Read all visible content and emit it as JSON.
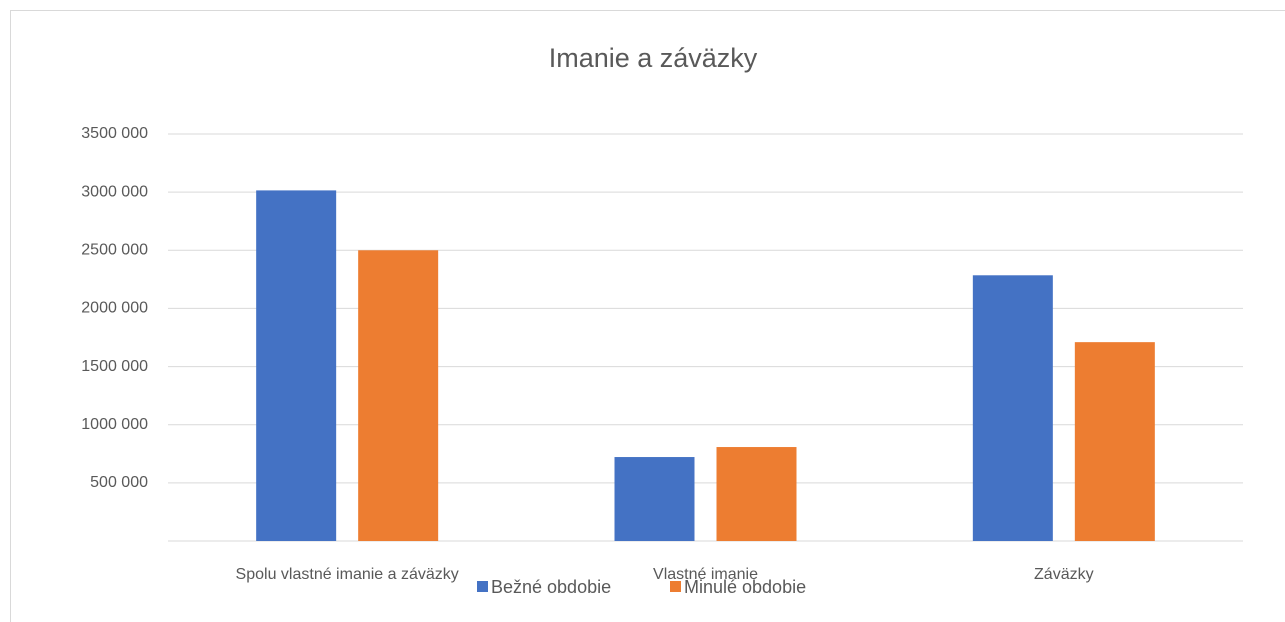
{
  "chart_data": {
    "type": "bar",
    "title": "Imanie a záväzky",
    "categories": [
      "Spolu vlastné imanie a záväzky",
      "Vlastné imanie",
      "Záväzky"
    ],
    "series": [
      {
        "name": "Bežné obdobie",
        "color": "#4472c4",
        "values": [
          3015000,
          722000,
          2285000
        ]
      },
      {
        "name": "Minulé obdobie",
        "color": "#ed7d31",
        "values": [
          2500000,
          808000,
          1710000
        ]
      }
    ],
    "ylim": [
      0,
      3500000
    ],
    "yticks": [
      {
        "value": 500000,
        "label": "500 000"
      },
      {
        "value": 1000000,
        "label": "1000 000"
      },
      {
        "value": 1500000,
        "label": "1500 000"
      },
      {
        "value": 2000000,
        "label": "2000 000"
      },
      {
        "value": 2500000,
        "label": "2500 000"
      },
      {
        "value": 3000000,
        "label": "3000 000"
      },
      {
        "value": 3500000,
        "label": "3500 000"
      }
    ],
    "grid": true,
    "legend": "bottom"
  }
}
